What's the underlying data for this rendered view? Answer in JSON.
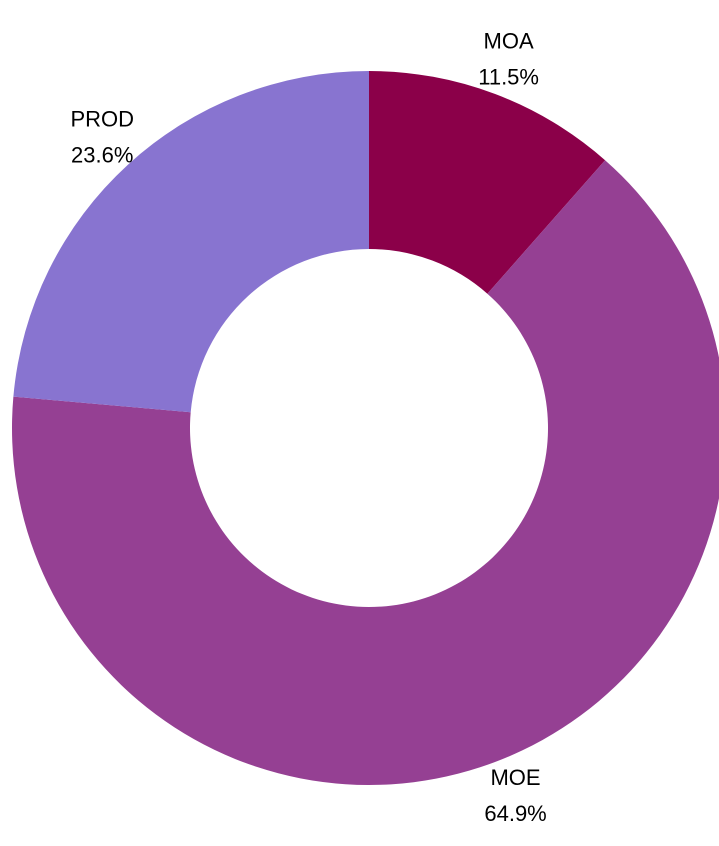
{
  "chart_data": {
    "type": "pie",
    "variant": "donut",
    "categories": [
      "MOA",
      "MOE",
      "PROD"
    ],
    "values": [
      11.5,
      64.9,
      23.6
    ],
    "value_labels": [
      "11.5%",
      "64.9%",
      "23.6%"
    ],
    "colors": [
      "#8B0049",
      "#954093",
      "#8874D0"
    ],
    "legend": "none"
  }
}
